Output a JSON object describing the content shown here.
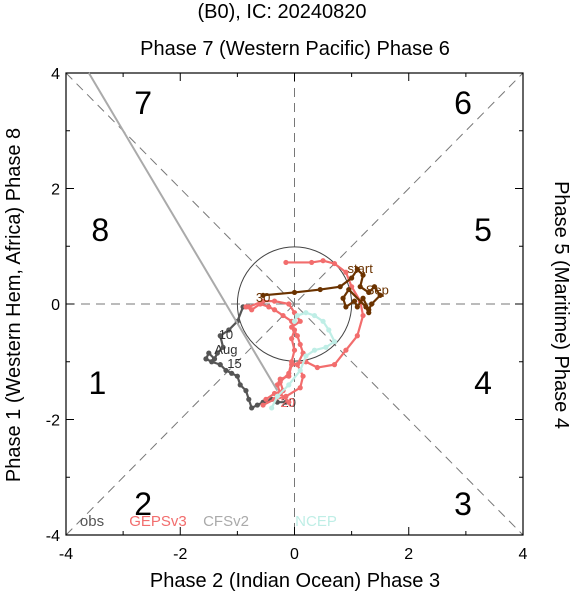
{
  "chart_data": {
    "type": "line",
    "title": "(B0), IC: 20240820",
    "top_label": "Phase 7 (Western Pacific) Phase 6",
    "bottom_label": "Phase 2 (Indian Ocean) Phase 3",
    "left_label": "Phase 1 (Western Hem, Africa) Phase 8",
    "right_label": "Phase 5 (Maritime) Phase 4",
    "xlim": [
      -4,
      4
    ],
    "ylim": [
      -4,
      4
    ],
    "x_ticks": [
      "-4",
      "-2",
      "0",
      "2",
      "4"
    ],
    "y_ticks": [
      "-4",
      "-2",
      "0",
      "2",
      "4"
    ],
    "phase_numbers": [
      "1",
      "2",
      "3",
      "4",
      "5",
      "6",
      "7",
      "8"
    ],
    "legend": [
      "obs",
      "GEPSv3",
      "CFSv2",
      "NCEP"
    ],
    "colors": {
      "obs": "#555555",
      "GEPSv3": "#f26d6d",
      "CFSv2": "#aaaaaa",
      "NCEP": "#bfeee6",
      "ensemble": "#6b3300"
    },
    "series": [
      {
        "name": "obs",
        "points": [
          [
            -0.9,
            -0.05
          ],
          [
            -1.0,
            -0.3
          ],
          [
            -1.15,
            -0.45
          ],
          [
            -1.3,
            -0.55
          ],
          [
            -1.25,
            -0.75
          ],
          [
            -1.35,
            -0.85
          ],
          [
            -1.4,
            -0.95
          ],
          [
            -1.5,
            -0.85
          ],
          [
            -1.55,
            -0.95
          ],
          [
            -1.45,
            -1.0
          ],
          [
            -1.3,
            -1.05
          ],
          [
            -1.2,
            -1.15
          ],
          [
            -1.1,
            -1.2
          ],
          [
            -1.0,
            -1.25
          ],
          [
            -0.95,
            -1.4
          ],
          [
            -0.85,
            -1.5
          ],
          [
            -0.8,
            -1.65
          ],
          [
            -0.75,
            -1.8
          ],
          [
            -0.65,
            -1.75
          ],
          [
            -0.55,
            -1.7
          ],
          [
            -0.4,
            -1.65
          ],
          [
            -0.3,
            -1.7
          ],
          [
            -0.15,
            -1.7
          ]
        ],
        "labels": [
          {
            "text": "10",
            "x": -1.2,
            "y": -0.52
          },
          {
            "text": "Aug",
            "x": -1.2,
            "y": -0.78
          },
          {
            "text": "15",
            "x": -1.05,
            "y": -1.02
          },
          {
            "text": "20",
            "x": -0.1,
            "y": -1.7
          }
        ]
      },
      {
        "name": "GEPSv3",
        "points": [
          [
            -0.1,
            -1.7
          ],
          [
            -0.25,
            -1.55
          ],
          [
            -0.3,
            -1.4
          ],
          [
            -0.25,
            -1.3
          ],
          [
            -0.1,
            -1.25
          ],
          [
            -0.05,
            -1.05
          ],
          [
            0.2,
            -1.0
          ],
          [
            0.4,
            -1.1
          ],
          [
            0.7,
            -1.05
          ],
          [
            0.9,
            -0.8
          ],
          [
            1.1,
            -0.55
          ],
          [
            1.2,
            -0.2
          ],
          [
            1.15,
            0.05
          ],
          [
            1.0,
            0.3
          ],
          [
            0.9,
            0.55
          ],
          [
            0.7,
            0.7
          ],
          [
            0.5,
            0.75
          ],
          [
            0.3,
            0.72
          ],
          [
            -0.15,
            0.72
          ]
        ],
        "labels": [
          {
            "text": "20",
            "x": -0.12,
            "y": -1.7
          }
        ]
      },
      {
        "name": "GEPSv3",
        "points": [
          [
            -0.5,
            -1.65
          ],
          [
            -0.35,
            -1.55
          ],
          [
            -0.2,
            -1.5
          ],
          [
            -0.25,
            -1.35
          ],
          [
            -0.1,
            -1.2
          ],
          [
            -0.05,
            -1.0
          ],
          [
            0.0,
            -0.8
          ],
          [
            -0.05,
            -0.6
          ],
          [
            0.0,
            -0.45
          ],
          [
            -0.05,
            -0.3
          ],
          [
            -0.2,
            -0.2
          ],
          [
            -0.35,
            -0.1
          ],
          [
            -0.45,
            -0.05
          ],
          [
            -0.6,
            0.0
          ],
          [
            -0.75,
            -0.1
          ],
          [
            -0.85,
            -0.05
          ]
        ],
        "labels": []
      },
      {
        "name": "GEPSv3",
        "points": [
          [
            -0.8,
            -0.05
          ],
          [
            -0.55,
            0.05
          ],
          [
            -0.35,
            0.05
          ],
          [
            -0.1,
            0.0
          ],
          [
            0.0,
            -0.15
          ],
          [
            0.1,
            -0.3
          ],
          [
            -0.05,
            -0.4
          ],
          [
            0.05,
            -0.55
          ],
          [
            0.1,
            -0.7
          ],
          [
            0.15,
            -0.85
          ],
          [
            0.05,
            -1.05
          ],
          [
            0.15,
            -1.25
          ],
          [
            0.1,
            -1.45
          ],
          [
            -0.15,
            -1.6
          ],
          [
            -0.35,
            -1.65
          ],
          [
            -0.55,
            -1.75
          ]
        ],
        "labels": []
      },
      {
        "name": "CFSv2",
        "points": [
          [
            -3.6,
            4.0
          ],
          [
            -0.3,
            -1.5
          ]
        ],
        "labels": []
      },
      {
        "name": "NCEP",
        "points": [
          [
            -0.4,
            -1.8
          ],
          [
            -0.3,
            -1.6
          ],
          [
            -0.1,
            -1.4
          ],
          [
            0.1,
            -1.15
          ],
          [
            0.2,
            -0.9
          ],
          [
            0.35,
            -0.8
          ],
          [
            0.55,
            -0.75
          ],
          [
            0.7,
            -0.65
          ],
          [
            0.6,
            -0.45
          ],
          [
            0.5,
            -0.3
          ],
          [
            0.35,
            -0.2
          ],
          [
            0.2,
            -0.15
          ],
          [
            0.05,
            -0.2
          ],
          [
            0.0,
            -0.3
          ]
        ],
        "labels": []
      },
      {
        "name": "ensemble",
        "points": [
          [
            -0.55,
            0.15
          ],
          [
            0.0,
            0.2
          ],
          [
            0.45,
            0.25
          ],
          [
            0.8,
            0.3
          ],
          [
            1.0,
            0.45
          ],
          [
            1.1,
            0.6
          ],
          [
            1.2,
            0.5
          ],
          [
            1.15,
            0.3
          ],
          [
            1.3,
            0.2
          ],
          [
            1.4,
            0.3
          ],
          [
            1.5,
            0.15
          ],
          [
            1.35,
            0.0
          ],
          [
            1.3,
            -0.1
          ],
          [
            1.2,
            0.1
          ],
          [
            1.1,
            -0.05
          ],
          [
            1.05,
            0.05
          ],
          [
            0.9,
            -0.05
          ],
          [
            0.85,
            0.1
          ],
          [
            0.95,
            0.25
          ],
          [
            1.25,
            -0.05
          ],
          [
            1.3,
            -0.15
          ]
        ],
        "labels": [
          {
            "text": "start",
            "x": 1.15,
            "y": 0.62
          },
          {
            "text": "Sep",
            "x": 1.45,
            "y": 0.25
          },
          {
            "text": "30",
            "x": -0.55,
            "y": 0.12
          }
        ]
      }
    ]
  }
}
